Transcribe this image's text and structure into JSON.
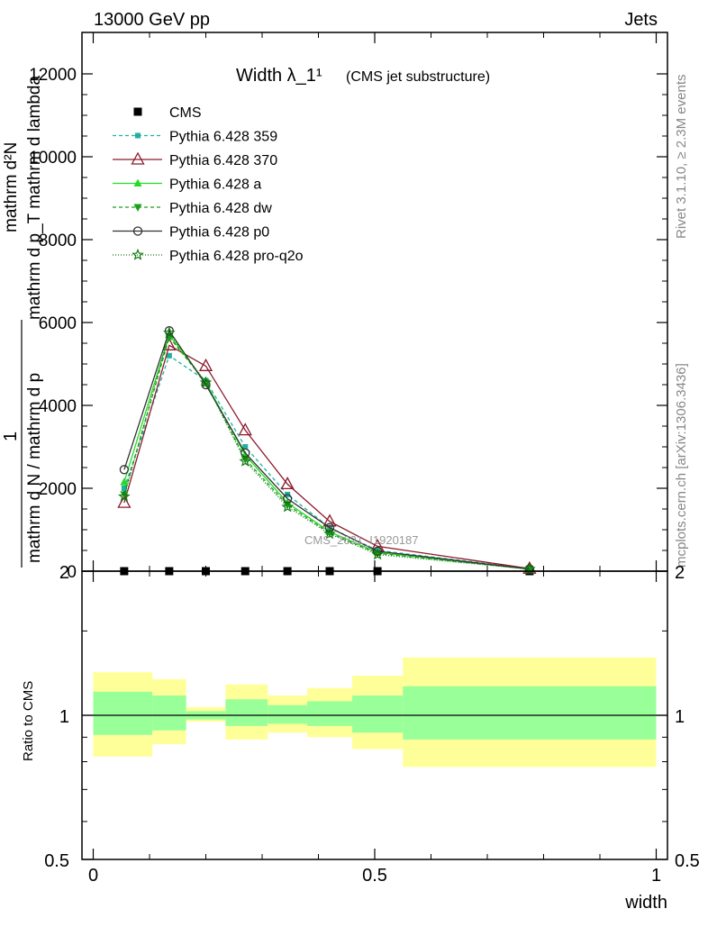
{
  "header": {
    "left": "13000 GeV pp",
    "right": "Jets"
  },
  "side_labels": {
    "rivet": "Rivet 3.1.10, ≥ 2.3M events",
    "mcplots": "mcplots.cern.ch [arXiv:1306.3436]"
  },
  "watermark": "CMS_2021_I1920187",
  "main_ylabel": {
    "frac_one": "1",
    "frac_den": "mathrm d N / mathrm d p",
    "frac2_num": "mathrm d²N",
    "frac2_den": "mathrm d p_T mathrm d lambda"
  },
  "ratio_ylabel": "Ratio to CMS",
  "xlabel": "width",
  "chart_data": [
    {
      "type": "line",
      "title": "Width λ_1¹",
      "subtitle": "(CMS jet substructure)",
      "xlim": [
        -0.02,
        1.02
      ],
      "ylim": [
        0,
        13000
      ],
      "yticks": [
        0,
        2000,
        4000,
        6000,
        8000,
        10000,
        12000
      ],
      "ytick_labels": [
        "0",
        "2000",
        "4000",
        "6000",
        "8000",
        "10000",
        "12000"
      ],
      "legend_position": "top-left",
      "x": [
        0.055,
        0.135,
        0.2,
        0.27,
        0.345,
        0.42,
        0.505,
        0.775
      ],
      "series": [
        {
          "name": "CMS",
          "marker": "square",
          "color": "#000000",
          "dash": "none",
          "values": [
            0,
            0,
            0,
            0,
            0,
            0,
            0,
            0
          ]
        },
        {
          "name": "Pythia 6.428 359",
          "marker": "square-small",
          "color": "#20b2a0",
          "dash": "4,3",
          "values": [
            2000,
            5200,
            4600,
            3000,
            1850,
            1050,
            500,
            60
          ]
        },
        {
          "name": "Pythia 6.428 370",
          "marker": "triangle-open",
          "color": "#8b1a2b",
          "dash": "none",
          "values": [
            1650,
            5450,
            4950,
            3400,
            2100,
            1200,
            600,
            60
          ]
        },
        {
          "name": "Pythia 6.428 a",
          "marker": "triangle",
          "color": "#22dd22",
          "dash": "none",
          "values": [
            2150,
            5700,
            4550,
            2800,
            1650,
            950,
            450,
            50
          ]
        },
        {
          "name": "Pythia 6.428 dw",
          "marker": "triangle-down",
          "color": "#1aa01a",
          "dash": "4,3",
          "values": [
            1850,
            5650,
            4550,
            2700,
            1600,
            920,
            430,
            50
          ]
        },
        {
          "name": "Pythia 6.428 p0",
          "marker": "circle-open",
          "color": "#333333",
          "dash": "none",
          "values": [
            2450,
            5800,
            4500,
            2850,
            1750,
            1050,
            480,
            50
          ]
        },
        {
          "name": "Pythia 6.428 pro-q2o",
          "marker": "star",
          "color": "#0f7a0f",
          "dash": "1,2",
          "values": [
            1800,
            5750,
            4550,
            2650,
            1550,
            900,
            400,
            50
          ]
        }
      ]
    },
    {
      "type": "area",
      "ylabel": "Ratio to CMS",
      "xlabel": "width",
      "xlim": [
        -0.02,
        1.02
      ],
      "ylim": [
        0.5,
        2.0
      ],
      "log_y": true,
      "xticks": [
        0,
        0.5,
        1
      ],
      "xtick_labels": [
        "0",
        "0.5",
        "1"
      ],
      "yticks": [
        0.5,
        1,
        2
      ],
      "ytick_labels": [
        "0.5",
        "1",
        "2"
      ],
      "reference_line": 1,
      "bins": [
        {
          "xlo": 0.0,
          "xhi": 0.105,
          "inner": [
            0.91,
            1.12
          ],
          "outer": [
            0.82,
            1.23
          ]
        },
        {
          "xlo": 0.105,
          "xhi": 0.165,
          "inner": [
            0.93,
            1.1
          ],
          "outer": [
            0.87,
            1.19
          ]
        },
        {
          "xlo": 0.165,
          "xhi": 0.235,
          "inner": [
            0.98,
            1.02
          ],
          "outer": [
            0.97,
            1.04
          ]
        },
        {
          "xlo": 0.235,
          "xhi": 0.31,
          "inner": [
            0.95,
            1.08
          ],
          "outer": [
            0.89,
            1.16
          ]
        },
        {
          "xlo": 0.31,
          "xhi": 0.38,
          "inner": [
            0.96,
            1.05
          ],
          "outer": [
            0.92,
            1.1
          ]
        },
        {
          "xlo": 0.38,
          "xhi": 0.46,
          "inner": [
            0.95,
            1.07
          ],
          "outer": [
            0.9,
            1.14
          ]
        },
        {
          "xlo": 0.46,
          "xhi": 0.55,
          "inner": [
            0.92,
            1.1
          ],
          "outer": [
            0.85,
            1.21
          ]
        },
        {
          "xlo": 0.55,
          "xhi": 1.0,
          "inner": [
            0.89,
            1.15
          ],
          "outer": [
            0.78,
            1.32
          ]
        }
      ],
      "colors": {
        "inner": "#99ff99",
        "outer": "#ffff99",
        "line": "#000000"
      }
    }
  ]
}
